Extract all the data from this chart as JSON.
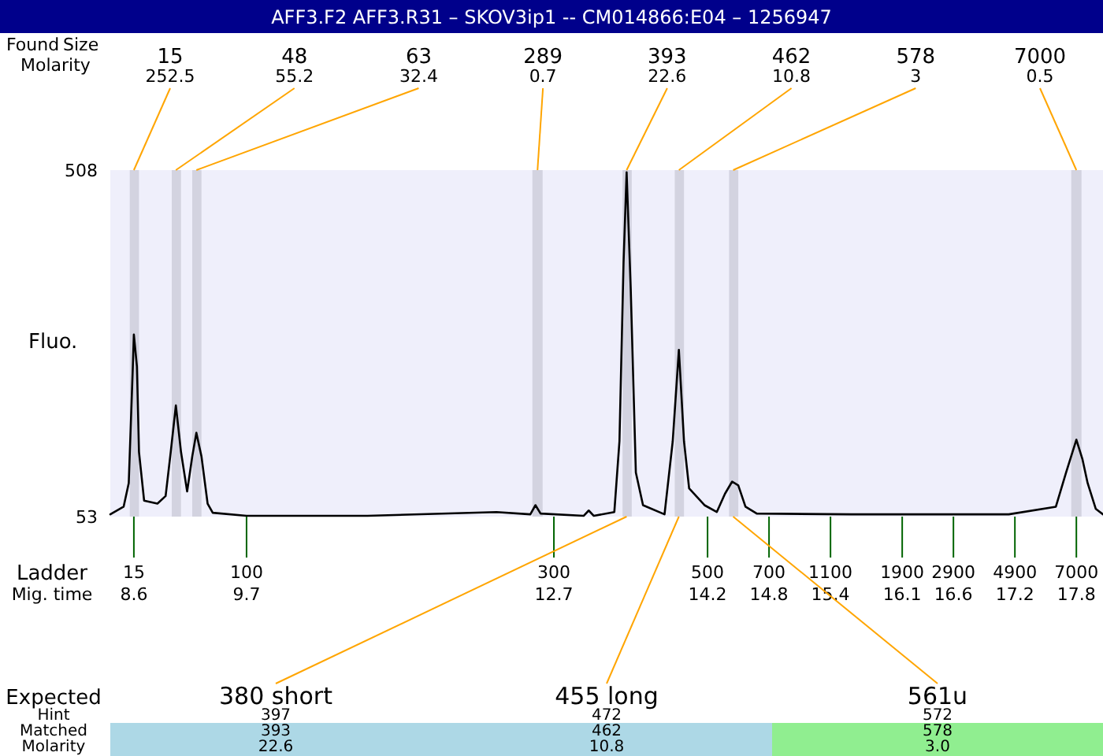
{
  "chart_data": {
    "type": "line",
    "title": "AFF3.F2  AFF3.R31 – SKOV3ip1 -- CM014866:E04 – 1256947",
    "ylabel": "Fluo.",
    "xlabel": "Mig. time",
    "xlim": [
      8.37,
      18.06
    ],
    "ylim": [
      53,
      508
    ],
    "yticks": [
      53,
      508
    ],
    "xticks": [
      8.6,
      9.7,
      12.7,
      14.2,
      14.8,
      15.4,
      16.1,
      16.6,
      17.2,
      17.8
    ],
    "series": [
      {
        "color": "#000000",
        "x": [
          8.37,
          8.5,
          8.55,
          8.59,
          8.6,
          8.63,
          8.65,
          8.7,
          8.83,
          8.91,
          8.96,
          9.01,
          9.06,
          9.12,
          9.17,
          9.21,
          9.26,
          9.32,
          9.37,
          9.7,
          10.88,
          12.14,
          12.47,
          12.52,
          12.57,
          12.99,
          13.04,
          13.09,
          13.29,
          13.34,
          13.38,
          13.41,
          13.45,
          13.5,
          13.57,
          13.78,
          13.86,
          13.92,
          13.97,
          14.02,
          14.17,
          14.29,
          14.37,
          14.44,
          14.5,
          14.57,
          14.68,
          15.6,
          17.14,
          17.6,
          17.7,
          17.8,
          17.86,
          17.91,
          17.99,
          18.06
        ],
        "values": [
          56,
          66,
          97,
          250,
          292,
          250,
          138,
          74,
          70,
          80,
          138,
          199,
          138,
          86,
          132,
          163,
          132,
          70,
          58,
          54,
          54,
          59,
          56,
          68,
          57,
          54,
          61,
          54,
          59,
          152,
          387,
          505,
          352,
          111,
          68,
          56,
          152,
          272,
          152,
          90,
          68,
          59,
          83,
          99,
          94,
          66,
          57,
          56,
          56,
          66,
          111,
          154,
          128,
          97,
          63,
          56
        ]
      }
    ],
    "bands": [
      {
        "axis": "x",
        "from": 8.56,
        "to": 8.65,
        "label": "15",
        "color": "#d3d3e0"
      },
      {
        "axis": "x",
        "from": 8.97,
        "to": 9.06,
        "label": "48",
        "color": "#d3d3e0"
      },
      {
        "axis": "x",
        "from": 9.17,
        "to": 9.26,
        "label": "63",
        "color": "#d3d3e0"
      },
      {
        "axis": "x",
        "from": 12.49,
        "to": 12.59,
        "label": "289",
        "color": "#d3d3e0"
      },
      {
        "axis": "x",
        "from": 13.37,
        "to": 13.46,
        "label": "393",
        "color": "#d3d3e0"
      },
      {
        "axis": "x",
        "from": 13.88,
        "to": 13.97,
        "label": "462",
        "color": "#d3d3e0"
      },
      {
        "axis": "x",
        "from": 14.41,
        "to": 14.5,
        "label": "578",
        "color": "#d3d3e0"
      },
      {
        "axis": "x",
        "from": 17.75,
        "to": 17.85,
        "label": "7000",
        "color": "#d3d3e0"
      }
    ],
    "annotations": [
      "Found",
      "Size",
      "Molarity",
      "Ladder",
      "Expected",
      "Hint",
      "Matched",
      "Molarity",
      {
        "text": "252.5",
        "x": 8.6,
        "y": 508
      },
      {
        "text": "55.2",
        "x": 9.01,
        "y": 508
      },
      {
        "text": "32.4",
        "x": 9.21,
        "y": 508
      },
      {
        "text": "0.7",
        "x": 12.54,
        "y": 508
      },
      {
        "text": "22.6",
        "x": 13.41,
        "y": 508
      },
      {
        "text": "10.8",
        "x": 13.92,
        "y": 508
      },
      {
        "text": "3",
        "x": 14.45,
        "y": 508
      },
      {
        "text": "0.5",
        "x": 17.8,
        "y": 508
      },
      {
        "text": "380 short",
        "x": 13.41,
        "y": 53
      },
      {
        "text": "455 long",
        "x": 13.92,
        "y": 53
      },
      {
        "text": "561u",
        "x": 14.45,
        "y": 53
      },
      "397",
      "393",
      "22.6",
      "472",
      "462",
      "10.8",
      "572",
      "578",
      "3.0",
      "15",
      "100",
      "300",
      "500",
      "700",
      "1100",
      "1900",
      "2900",
      "4900",
      "7000"
    ]
  }
}
